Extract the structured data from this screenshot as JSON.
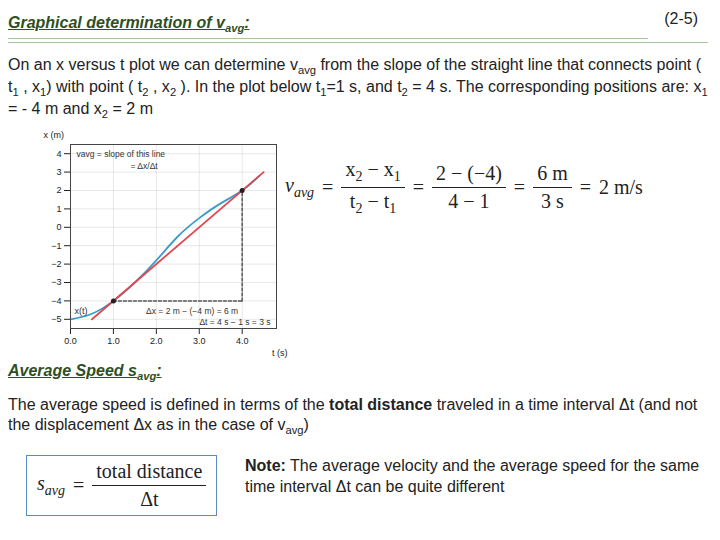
{
  "header": {
    "title": [
      "Graphical determination of v",
      {
        "sub": "avg"
      },
      ":"
    ],
    "page": "(2-5)"
  },
  "intro": [
    "On an x versus t plot we can determine v",
    {
      "sub": "avg"
    },
    " from the slope of the straight line that connects point ( t",
    {
      "sub": "1"
    },
    " , x",
    {
      "sub": "1"
    },
    ") with point ( t",
    {
      "sub": "2"
    },
    " , x",
    {
      "sub": "2"
    },
    " ).  In the plot below t",
    {
      "sub": "1"
    },
    "=1 s, and t",
    {
      "sub": "2"
    },
    " = 4 s.  The corresponding positions are: x",
    {
      "sub": "1"
    },
    " = - 4 m and x",
    {
      "sub": "2"
    },
    " = 2 m"
  ],
  "formula_vavg": {
    "lhs": [
      "v",
      {
        "sub": "avg"
      }
    ],
    "operator": "=",
    "terms": [
      {
        "num": [
          "x",
          {
            "sub": "2"
          },
          " − x",
          {
            "sub": "1"
          }
        ],
        "den": [
          "t",
          {
            "sub": "2"
          },
          " − t",
          {
            "sub": "1"
          }
        ]
      },
      {
        "num": [
          "2 − (−4)"
        ],
        "den": [
          "4 − 1"
        ]
      },
      {
        "num": [
          "6 m"
        ],
        "den": [
          "3 s"
        ]
      },
      {
        "text": [
          "2 m/s"
        ]
      }
    ]
  },
  "chart_data": {
    "type": "line",
    "x_label": "t (s)",
    "y_label": "x (m)",
    "xlim": [
      0,
      4.8
    ],
    "xticks": [
      0,
      1,
      2,
      3,
      4
    ],
    "ylim": [
      -5.5,
      4.5
    ],
    "yticks": [
      -5,
      -4,
      -3,
      -2,
      -1,
      0,
      1,
      2,
      3,
      4
    ],
    "grid": true,
    "series": [
      {
        "name": "x(t)",
        "color": "#3d9bc9",
        "x": [
          0,
          0.5,
          1,
          1.5,
          2,
          2.5,
          3,
          3.5,
          4,
          4.4
        ],
        "values": [
          -5,
          -4.7,
          -4,
          -3,
          -1.8,
          -0.5,
          0.5,
          1.3,
          2,
          2.8
        ]
      },
      {
        "color": "#e2474f",
        "x": [
          0.5,
          4.5
        ],
        "values": [
          -5,
          3
        ]
      }
    ],
    "points": {
      "t": [
        1,
        4
      ],
      "x": [
        -4,
        2
      ]
    },
    "annotations": {
      "slope_label": "vavg = slope of this line",
      "slope_formula": "= Δx/Δt",
      "dx_label": "Δx = 2 m − (−4 m) = 6 m",
      "dt_label": "Δt = 4 s − 1 s = 3 s"
    }
  },
  "section": {
    "heading": [
      "Average Speed s",
      {
        "sub": "avg"
      },
      ":"
    ],
    "text": [
      "The average speed is defined in terms of the ",
      {
        "b": "total distance"
      },
      " traveled in a time interval Δt (and not the displacement Δx as in the case of v",
      {
        "sub": "avg"
      },
      ")"
    ],
    "formula": {
      "lhs": [
        "s",
        {
          "sub": "avg"
        }
      ],
      "operator": "=",
      "terms": [
        {
          "num": [
            "total distance"
          ],
          "den": [
            "Δt"
          ]
        }
      ]
    },
    "note": [
      {
        "b": "Note:"
      },
      " The average velocity and the average speed for the same time interval Δt can be quite different"
    ]
  }
}
